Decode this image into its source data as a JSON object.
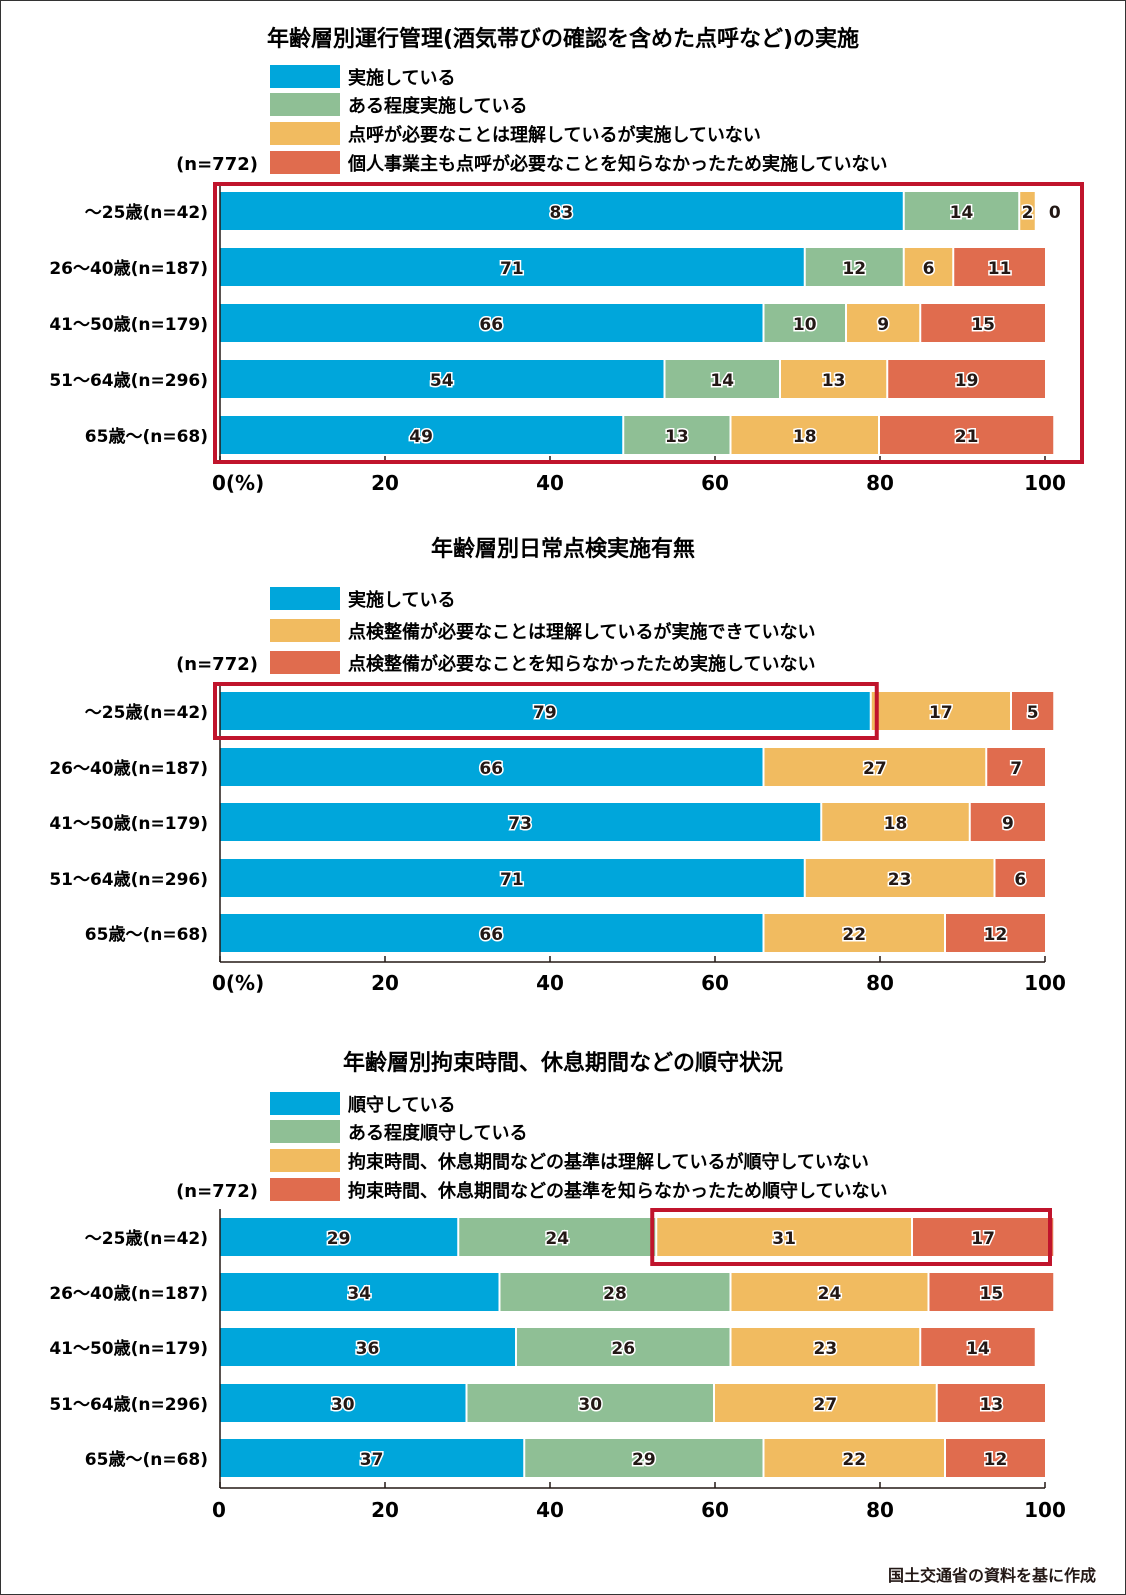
{
  "source_note": "国土交通省の資料を基に作成",
  "colors": {
    "blue": "#00a6db",
    "green": "#8fbf95",
    "yellow": "#f1bb60",
    "red": "#e06c4e",
    "highlight": "#c0142c",
    "axis": "#231815"
  },
  "chart_data": [
    {
      "type": "bar",
      "orientation": "horizontal",
      "stacked": true,
      "title": "年齢層別運行管理(酒気帯びの確認を含めた点呼など)の実施",
      "sample_note": "(n=772)",
      "categories": [
        "〜25歳(n=42)",
        "26〜40歳(n=187)",
        "41〜50歳(n=179)",
        "51〜64歳(n=296)",
        "65歳〜(n=68)"
      ],
      "series": [
        {
          "name": "実施している",
          "color": "blue",
          "values": [
            83,
            71,
            66,
            54,
            49
          ]
        },
        {
          "name": "ある程度実施している",
          "color": "green",
          "values": [
            14,
            12,
            10,
            14,
            13
          ]
        },
        {
          "name": "点呼が必要なことは理解しているが実施していない",
          "color": "yellow",
          "values": [
            2,
            6,
            9,
            13,
            18
          ]
        },
        {
          "name": "個人事業主も点呼が必要なことを知らなかったため実施していない",
          "color": "red",
          "values": [
            0,
            11,
            15,
            19,
            21
          ]
        }
      ],
      "xlim": [
        0,
        100
      ],
      "xticks": [
        "0(%)",
        "20",
        "40",
        "60",
        "80",
        "100"
      ],
      "xtick_values": [
        0,
        20,
        40,
        60,
        80,
        100
      ],
      "legend": "top",
      "highlight": {
        "rows": [
          0,
          4
        ],
        "series": [
          0,
          3
        ],
        "description": "all bars boxed"
      }
    },
    {
      "type": "bar",
      "orientation": "horizontal",
      "stacked": true,
      "title": "年齢層別日常点検実施有無",
      "sample_note": "(n=772)",
      "categories": [
        "〜25歳(n=42)",
        "26〜40歳(n=187)",
        "41〜50歳(n=179)",
        "51〜64歳(n=296)",
        "65歳〜(n=68)"
      ],
      "series": [
        {
          "name": "実施している",
          "color": "blue",
          "values": [
            79,
            66,
            73,
            71,
            66
          ]
        },
        {
          "name": "点検整備が必要なことは理解しているが実施できていない",
          "color": "yellow",
          "values": [
            17,
            27,
            18,
            23,
            22
          ]
        },
        {
          "name": "点検整備が必要なことを知らなかったため実施していない",
          "color": "red",
          "values": [
            5,
            7,
            9,
            6,
            12
          ]
        }
      ],
      "xlim": [
        0,
        100
      ],
      "xticks": [
        "0(%)",
        "20",
        "40",
        "60",
        "80",
        "100"
      ],
      "xtick_values": [
        0,
        20,
        40,
        60,
        80,
        100
      ],
      "legend": "top",
      "highlight": {
        "rows": [
          0,
          0
        ],
        "series": [
          0,
          0
        ],
        "description": "〜25歳 実施している boxed"
      }
    },
    {
      "type": "bar",
      "orientation": "horizontal",
      "stacked": true,
      "title": "年齢層別拘束時間、休息期間などの順守状況",
      "sample_note": "(n=772)",
      "categories": [
        "〜25歳(n=42)",
        "26〜40歳(n=187)",
        "41〜50歳(n=179)",
        "51〜64歳(n=296)",
        "65歳〜(n=68)"
      ],
      "series": [
        {
          "name": "順守している",
          "color": "blue",
          "values": [
            29,
            34,
            36,
            30,
            37
          ]
        },
        {
          "name": "ある程度順守している",
          "color": "green",
          "values": [
            24,
            28,
            26,
            30,
            29
          ]
        },
        {
          "name": "拘束時間、休息期間などの基準は理解しているが順守していない",
          "color": "yellow",
          "values": [
            31,
            24,
            23,
            27,
            22
          ]
        },
        {
          "name": "拘束時間、休息期間などの基準を知らなかったため順守していない",
          "color": "red",
          "values": [
            17,
            15,
            14,
            13,
            12
          ]
        }
      ],
      "xlim": [
        0,
        100
      ],
      "xticks": [
        "0",
        "20",
        "40",
        "60",
        "80",
        "100"
      ],
      "xtick_values": [
        0,
        20,
        40,
        60,
        80,
        100
      ],
      "legend": "top",
      "highlight": {
        "rows": [
          0,
          0
        ],
        "series": [
          2,
          3
        ],
        "description": "〜25歳 non-compliance boxed"
      }
    }
  ]
}
